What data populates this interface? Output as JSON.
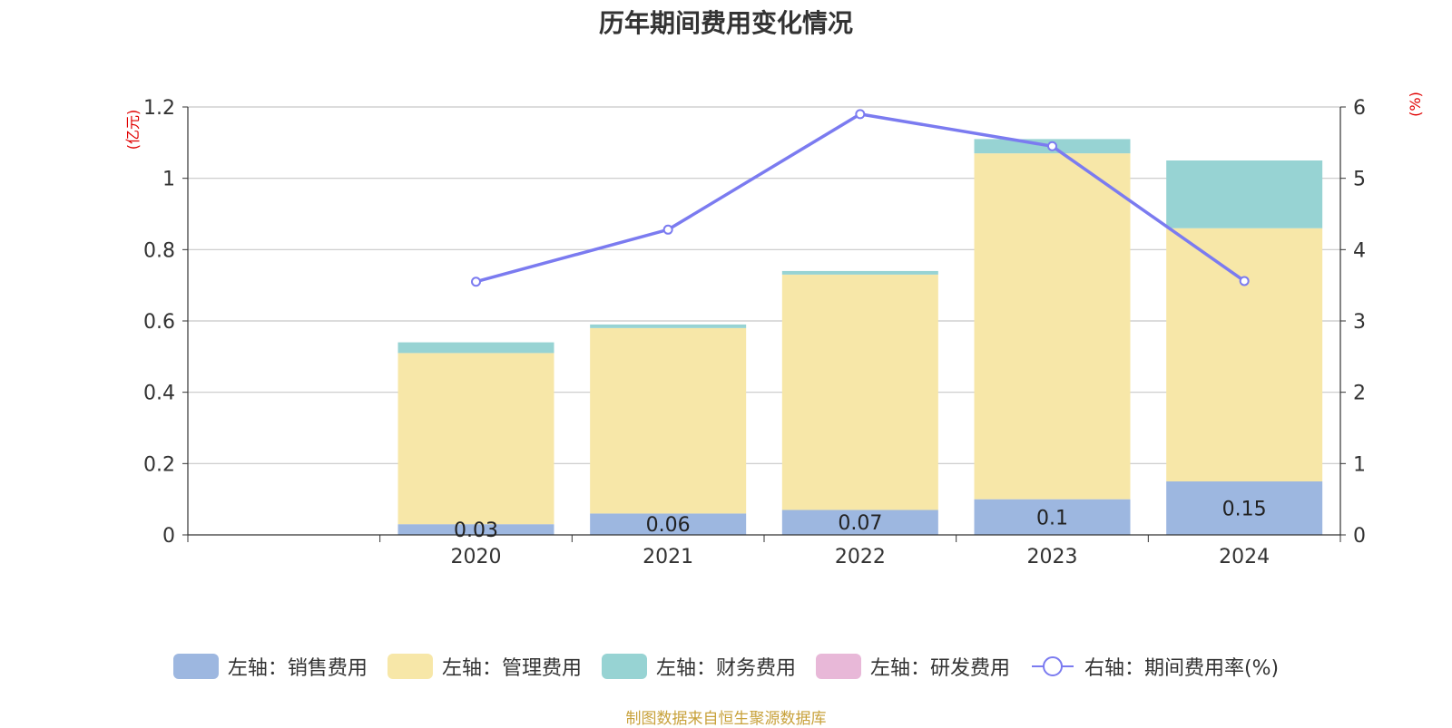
{
  "title": "历年期间费用变化情况",
  "source": "制图数据来自恒生聚源数据库",
  "chart_data": {
    "type": "bar",
    "stacked": true,
    "categories": [
      "",
      "2020",
      "2021",
      "2022",
      "2023",
      "2024"
    ],
    "left_axis": {
      "unit_label": "(亿元)",
      "ylim": [
        0,
        1.2
      ],
      "ticks": [
        "0",
        "0.2",
        "0.4",
        "0.6",
        "0.8",
        "1",
        "1.2"
      ]
    },
    "right_axis": {
      "unit_label": "(%)",
      "ylim": [
        0,
        6
      ],
      "ticks": [
        "0",
        "1",
        "2",
        "3",
        "4",
        "5",
        "6"
      ]
    },
    "grid": true,
    "series": [
      {
        "name": "左轴：销售费用",
        "color": "#9db7e0",
        "values": [
          null,
          0.03,
          0.06,
          0.07,
          0.1,
          0.15
        ],
        "labels": [
          "",
          "0.03",
          "0.06",
          "0.07",
          "0.1",
          "0.15"
        ]
      },
      {
        "name": "左轴：管理费用",
        "color": "#f7e7a8",
        "values": [
          null,
          0.48,
          0.52,
          0.66,
          0.97,
          0.71
        ]
      },
      {
        "name": "左轴：财务费用",
        "color": "#97d3d3",
        "values": [
          null,
          0.03,
          0.01,
          0.01,
          0.04,
          0.19
        ]
      },
      {
        "name": "左轴：研发费用",
        "color": "#e8b8d8",
        "values": [
          null,
          0,
          0,
          0,
          0,
          0
        ]
      },
      {
        "name": "右轴：期间费用率(%)",
        "color": "#7b7bf0",
        "type": "line",
        "axis": "right",
        "values": [
          null,
          3.55,
          4.28,
          5.9,
          5.45,
          3.56
        ]
      }
    ],
    "legend_position": "bottom"
  }
}
